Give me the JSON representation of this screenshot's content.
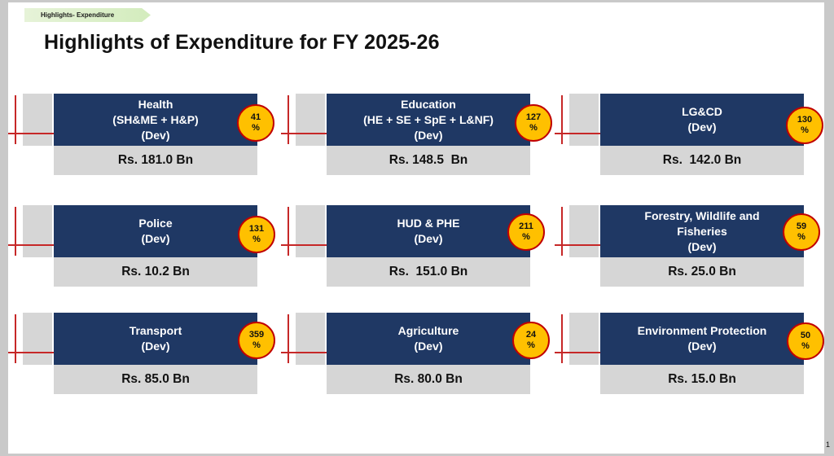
{
  "tag": "Highlights- Expenditure",
  "title": "Highlights of Expenditure for FY 2025-26",
  "page_number": "1",
  "cards": [
    {
      "head": "Health\n(SH&ME + H&P)\n(Dev)",
      "pct": "41",
      "pct_sign": "%",
      "value": "Rs. 181.0 Bn"
    },
    {
      "head": "Education\n(HE + SE + SpE + L&NF)\n(Dev)",
      "pct": "127",
      "pct_sign": "%",
      "value": "Rs. 148.5  Bn"
    },
    {
      "head": "LG&CD\n(Dev)",
      "pct": "130",
      "pct_sign": "%",
      "value": "Rs.  142.0 Bn"
    },
    {
      "head": "Police\n(Dev)",
      "pct": "131",
      "pct_sign": "%",
      "value": "Rs. 10.2 Bn"
    },
    {
      "head": "HUD & PHE\n(Dev)",
      "pct": "211",
      "pct_sign": "%",
      "value": "Rs.  151.0 Bn"
    },
    {
      "head": "Forestry, Wildlife and\nFisheries\n(Dev)",
      "pct": "59",
      "pct_sign": "%",
      "value": "Rs. 25.0 Bn"
    },
    {
      "head": "Transport\n(Dev)",
      "pct": "359",
      "pct_sign": "%",
      "value": "Rs. 85.0 Bn"
    },
    {
      "head": "Agriculture\n(Dev)",
      "pct": "24",
      "pct_sign": "%",
      "value": "Rs. 80.0 Bn"
    },
    {
      "head": "Environment Protection\n(Dev)",
      "pct": "50",
      "pct_sign": "%",
      "value": "Rs. 15.0 Bn"
    }
  ],
  "colors": {
    "header": "#1f3864",
    "value_bg": "#d6d6d6",
    "badge_fill": "#ffc000",
    "badge_border": "#c00000",
    "accent_line": "#c62828"
  }
}
